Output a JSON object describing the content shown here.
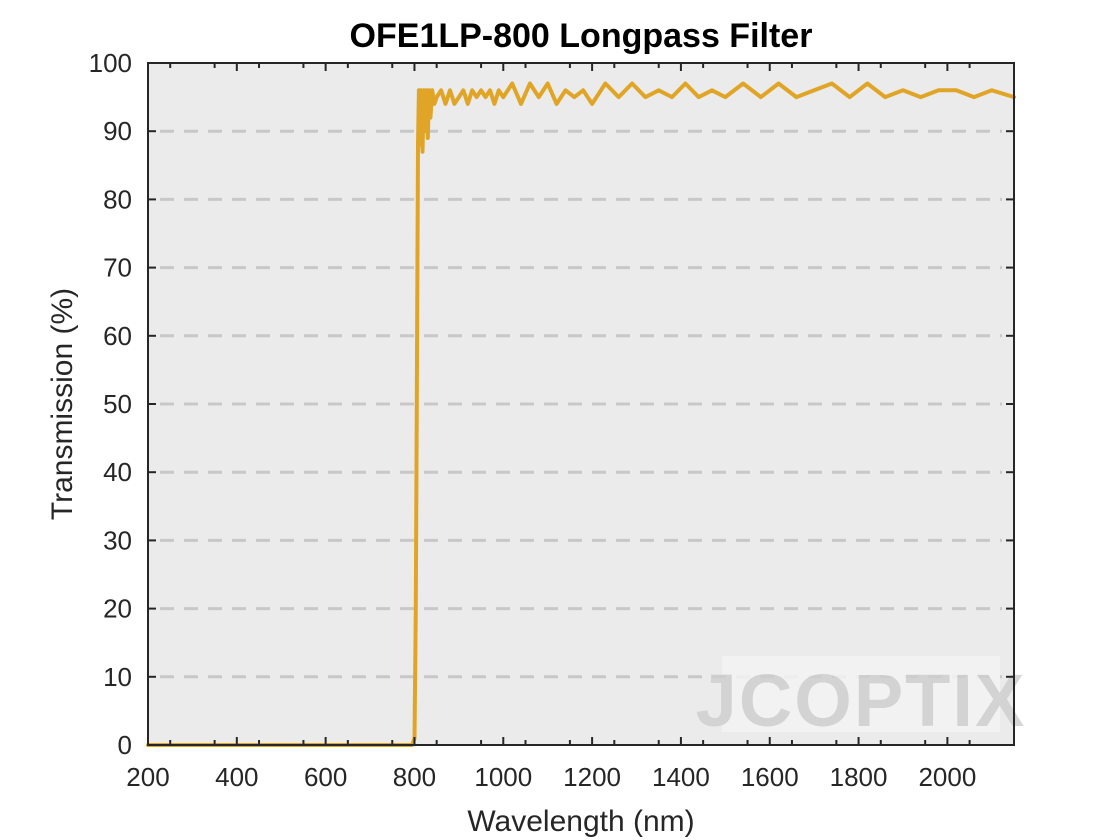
{
  "chart_data": {
    "type": "line",
    "title": "OFE1LP-800 Longpass Filter",
    "xlabel": "Wavelength (nm)",
    "ylabel": "Transmission (%)",
    "xlim": [
      200,
      2150
    ],
    "ylim": [
      0,
      100
    ],
    "x_ticks": [
      "200",
      "400",
      "600",
      "800",
      "1000",
      "1200",
      "1400",
      "1600",
      "1800",
      "2000"
    ],
    "y_ticks": [
      "0",
      "10",
      "20",
      "30",
      "40",
      "50",
      "60",
      "70",
      "80",
      "90",
      "100"
    ],
    "grid": "horizontal dashed",
    "legend": "none",
    "series": [
      {
        "color": "#E0A526",
        "x": [
          200,
          300,
          400,
          500,
          600,
          700,
          780,
          795,
          800,
          803,
          806,
          808,
          810,
          812,
          815,
          818,
          821,
          824,
          827,
          830,
          833,
          836,
          840,
          845,
          850,
          860,
          870,
          880,
          890,
          900,
          910,
          920,
          930,
          940,
          950,
          960,
          970,
          980,
          990,
          1000,
          1020,
          1040,
          1060,
          1080,
          1100,
          1120,
          1140,
          1160,
          1180,
          1200,
          1230,
          1260,
          1290,
          1320,
          1350,
          1380,
          1410,
          1440,
          1470,
          1500,
          1540,
          1580,
          1620,
          1660,
          1700,
          1740,
          1780,
          1820,
          1860,
          1900,
          1940,
          1980,
          2020,
          2060,
          2100,
          2150
        ],
        "y": [
          0,
          0,
          0,
          0,
          0,
          0,
          0,
          0,
          1,
          20,
          60,
          88,
          96,
          88,
          96,
          87,
          96,
          90,
          96,
          89,
          96,
          92,
          96,
          94,
          95,
          96,
          94,
          96,
          94,
          95,
          96,
          94,
          96,
          95,
          96,
          95,
          96,
          94,
          96,
          95,
          97,
          94,
          97,
          95,
          97,
          94,
          96,
          95,
          96,
          94,
          97,
          95,
          97,
          95,
          96,
          95,
          97,
          95,
          96,
          95,
          97,
          95,
          97,
          95,
          96,
          97,
          95,
          97,
          95,
          96,
          95,
          96,
          96,
          95,
          96,
          95
        ]
      }
    ]
  },
  "watermark": {
    "text": "JCOPTIX"
  }
}
